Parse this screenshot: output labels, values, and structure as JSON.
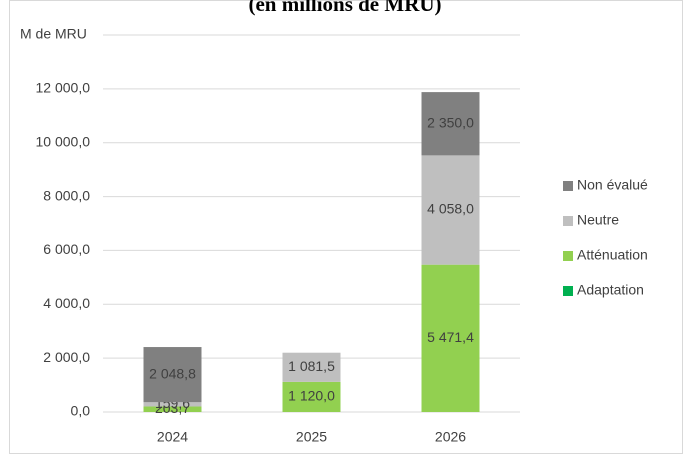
{
  "chart_data": {
    "type": "stacked_bar",
    "title": "(en millions de MRU)",
    "y_axis_label": "M de MRU",
    "categories": [
      "2024",
      "2025",
      "2026"
    ],
    "series": [
      {
        "name": "Adaptation",
        "color": "#00b050",
        "values": [
          0,
          0,
          0
        ],
        "value_labels": [
          null,
          null,
          null
        ]
      },
      {
        "name": "Atténuation",
        "color": "#92d050",
        "values": [
          203.7,
          1120.0,
          5471.4
        ],
        "value_labels": [
          "203,7",
          "1 120,0",
          "5 471,4"
        ]
      },
      {
        "name": "Neutre",
        "color": "#bfbfbf",
        "values": [
          159.6,
          1081.5,
          4058.0
        ],
        "value_labels": [
          "159,6",
          "1 081,5",
          "4 058,0"
        ]
      },
      {
        "name": "Non évalué",
        "color": "#808080",
        "values": [
          2048.8,
          null,
          2350.0
        ],
        "value_labels": [
          "2 048,8",
          null,
          "2 350,0"
        ]
      }
    ],
    "ylim": [
      0,
      14000
    ],
    "yticks": [
      {
        "value": 0,
        "label": "0,0"
      },
      {
        "value": 2000,
        "label": "2 000,0"
      },
      {
        "value": 4000,
        "label": "4 000,0"
      },
      {
        "value": 6000,
        "label": "6 000,0"
      },
      {
        "value": 8000,
        "label": "8 000,0"
      },
      {
        "value": 10000,
        "label": "10 000,0"
      },
      {
        "value": 12000,
        "label": "12 000,0"
      }
    ],
    "grid": true,
    "legend": "right"
  }
}
